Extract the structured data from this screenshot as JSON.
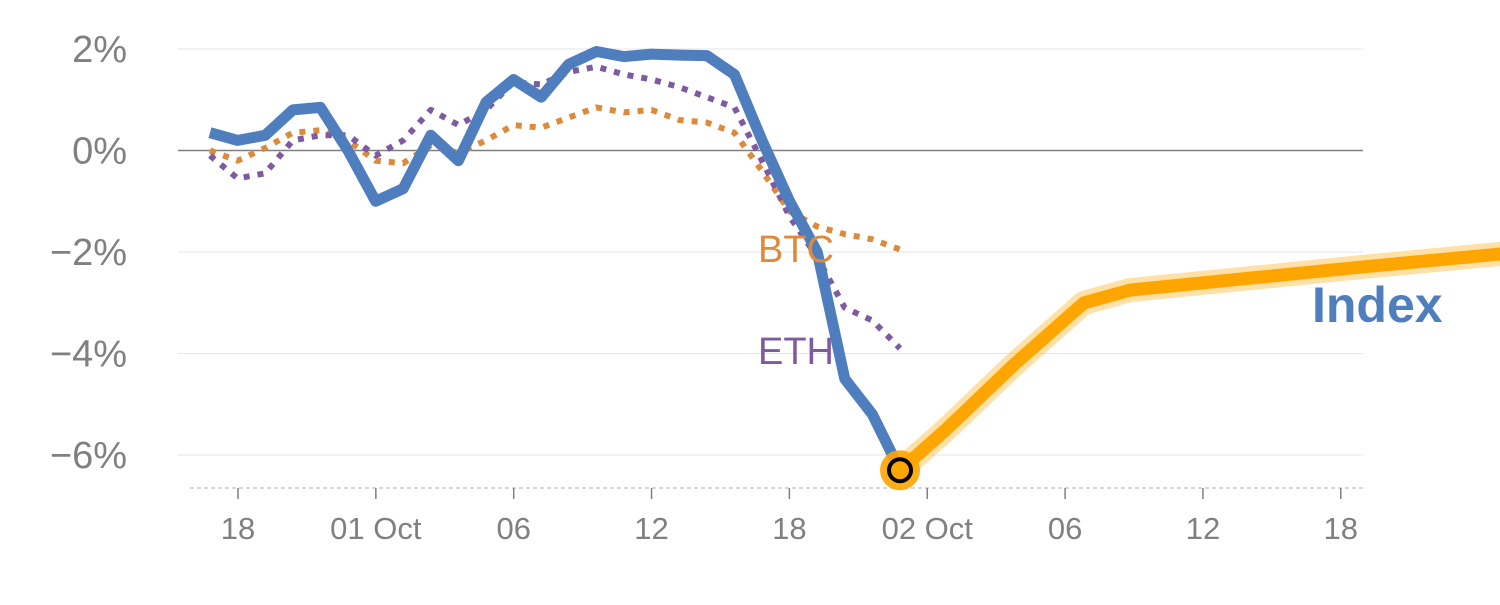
{
  "chart_data": {
    "type": "line",
    "title": "",
    "xlabel": "",
    "ylabel": "",
    "ylim": [
      -6.7,
      2.4
    ],
    "y_ticks": [
      {
        "value": 2,
        "label": "2%"
      },
      {
        "value": 0,
        "label": "0%"
      },
      {
        "value": -2,
        "label": "−2%"
      },
      {
        "value": -4,
        "label": "−4%"
      },
      {
        "value": -6,
        "label": "−6%"
      }
    ],
    "x_tick_labels": [
      "18",
      "01 Oct",
      "06",
      "12",
      "18",
      "02 Oct",
      "06",
      "12",
      "18"
    ],
    "zero_line": true,
    "series": [
      {
        "name": "Index",
        "color": "#4f7ebf",
        "style": "solid",
        "points": [
          [
            0.0,
            0.35
          ],
          [
            0.6,
            0.2
          ],
          [
            1.2,
            0.3
          ],
          [
            1.8,
            0.8
          ],
          [
            2.4,
            0.85
          ],
          [
            3.0,
            0.0
          ],
          [
            3.6,
            -1.0
          ],
          [
            4.2,
            -0.75
          ],
          [
            4.8,
            0.3
          ],
          [
            5.4,
            -0.2
          ],
          [
            6.0,
            0.95
          ],
          [
            6.6,
            1.4
          ],
          [
            7.2,
            1.05
          ],
          [
            7.8,
            1.7
          ],
          [
            8.4,
            1.95
          ],
          [
            9.0,
            1.85
          ],
          [
            9.6,
            1.9
          ],
          [
            10.2,
            1.88
          ],
          [
            10.8,
            1.87
          ],
          [
            11.4,
            1.5
          ],
          [
            12.0,
            0.2
          ],
          [
            12.6,
            -1.0
          ],
          [
            13.2,
            -2.0
          ],
          [
            13.8,
            -4.5
          ],
          [
            14.4,
            -5.2
          ],
          [
            15.0,
            -6.3
          ]
        ]
      },
      {
        "name": "BTC",
        "color": "#dc8a3c",
        "style": "dotted",
        "points": [
          [
            0.0,
            0.0
          ],
          [
            0.6,
            -0.2
          ],
          [
            1.2,
            0.05
          ],
          [
            1.8,
            0.35
          ],
          [
            2.4,
            0.4
          ],
          [
            3.0,
            0.2
          ],
          [
            3.6,
            -0.2
          ],
          [
            4.2,
            -0.25
          ],
          [
            4.8,
            0.1
          ],
          [
            5.4,
            -0.05
          ],
          [
            6.0,
            0.2
          ],
          [
            6.6,
            0.5
          ],
          [
            7.2,
            0.45
          ],
          [
            7.8,
            0.65
          ],
          [
            8.4,
            0.85
          ],
          [
            9.0,
            0.75
          ],
          [
            9.6,
            0.8
          ],
          [
            10.2,
            0.6
          ],
          [
            10.8,
            0.55
          ],
          [
            11.4,
            0.35
          ],
          [
            12.0,
            -0.4
          ],
          [
            12.6,
            -1.2
          ],
          [
            13.2,
            -1.5
          ],
          [
            13.8,
            -1.65
          ],
          [
            14.4,
            -1.75
          ],
          [
            15.0,
            -1.95
          ]
        ]
      },
      {
        "name": "ETH",
        "color": "#7e5aa2",
        "style": "dotted",
        "points": [
          [
            0.0,
            -0.1
          ],
          [
            0.6,
            -0.55
          ],
          [
            1.2,
            -0.45
          ],
          [
            1.8,
            0.2
          ],
          [
            2.4,
            0.3
          ],
          [
            3.0,
            0.3
          ],
          [
            3.6,
            -0.1
          ],
          [
            4.2,
            0.2
          ],
          [
            4.8,
            0.8
          ],
          [
            5.4,
            0.5
          ],
          [
            6.0,
            0.8
          ],
          [
            6.6,
            1.35
          ],
          [
            7.2,
            1.3
          ],
          [
            7.8,
            1.55
          ],
          [
            8.4,
            1.65
          ],
          [
            9.0,
            1.5
          ],
          [
            9.6,
            1.4
          ],
          [
            10.2,
            1.25
          ],
          [
            10.8,
            1.05
          ],
          [
            11.4,
            0.85
          ],
          [
            12.0,
            -0.2
          ],
          [
            12.6,
            -1.3
          ],
          [
            13.2,
            -2.1
          ],
          [
            13.8,
            -3.1
          ],
          [
            14.4,
            -3.35
          ],
          [
            15.0,
            -3.9
          ]
        ]
      },
      {
        "name": "Index",
        "color": "#ffa500",
        "style": "highlight",
        "points": [
          [
            15.0,
            -6.3
          ],
          [
            16.0,
            -5.5
          ],
          [
            17.5,
            -4.2
          ],
          [
            19.0,
            -3.0
          ],
          [
            20.0,
            -2.75
          ],
          [
            25.0,
            -2.3
          ],
          [
            28.5,
            -2.0
          ]
        ]
      }
    ],
    "series_labels": [
      {
        "text": "BTC",
        "color": "#dc8a3c"
      },
      {
        "text": "ETH",
        "color": "#7e5aa2"
      },
      {
        "text": "Index",
        "color": "#4f7ebf"
      }
    ],
    "marker": {
      "x": 15.0,
      "y": -6.3,
      "fill": "#ffa500",
      "ring": "#000000"
    }
  }
}
